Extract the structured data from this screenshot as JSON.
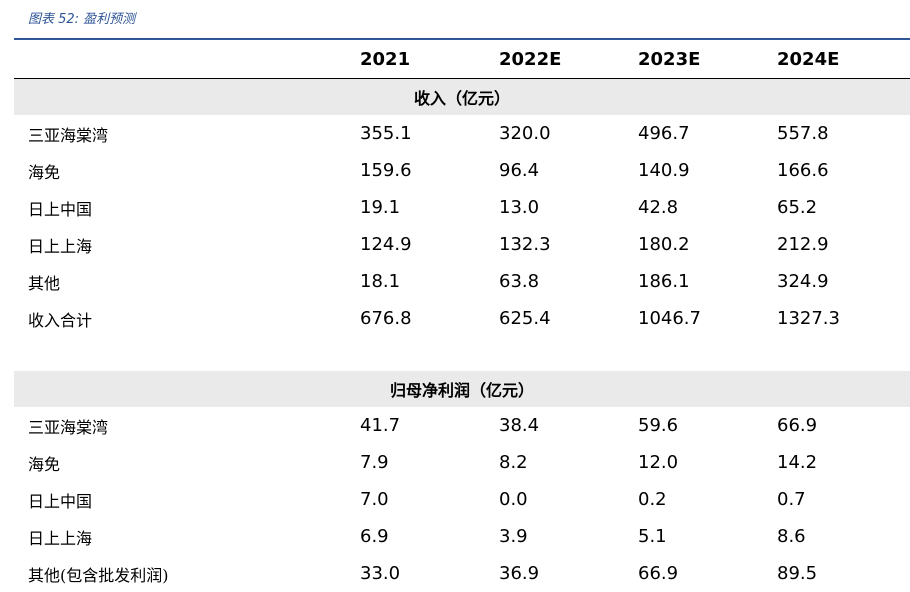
{
  "figure_title": "图表 52: 盈利预测",
  "columns": [
    "",
    "2021",
    "2022E",
    "2023E",
    "2024E"
  ],
  "sections": [
    {
      "title": "收入（亿元）",
      "rows": [
        {
          "label": "三亚海棠湾",
          "values": [
            "355.1",
            "320.0",
            "496.7",
            "557.8"
          ]
        },
        {
          "label": "海免",
          "values": [
            "159.6",
            "96.4",
            "140.9",
            "166.6"
          ]
        },
        {
          "label": "日上中国",
          "values": [
            "19.1",
            "13.0",
            "42.8",
            "65.2"
          ]
        },
        {
          "label": "日上上海",
          "values": [
            "124.9",
            "132.3",
            "180.2",
            "212.9"
          ]
        },
        {
          "label": "其他",
          "values": [
            "18.1",
            "63.8",
            "186.1",
            "324.9"
          ]
        },
        {
          "label": "收入合计",
          "values": [
            "676.8",
            "625.4",
            "1046.7",
            "1327.3"
          ]
        }
      ]
    },
    {
      "title": "归母净利润（亿元）",
      "rows": [
        {
          "label": "三亚海棠湾",
          "values": [
            "41.7",
            "38.4",
            "59.6",
            "66.9"
          ]
        },
        {
          "label": "海免",
          "values": [
            "7.9",
            "8.2",
            "12.0",
            "14.2"
          ]
        },
        {
          "label": "日上中国",
          "values": [
            "7.0",
            "0.0",
            "0.2",
            "0.7"
          ]
        },
        {
          "label": "日上上海",
          "values": [
            "6.9",
            "3.9",
            "5.1",
            "8.6"
          ]
        },
        {
          "label": "其他(包含批发利润)",
          "values": [
            "33.0",
            "36.9",
            "66.9",
            "89.5"
          ]
        }
      ]
    }
  ]
}
